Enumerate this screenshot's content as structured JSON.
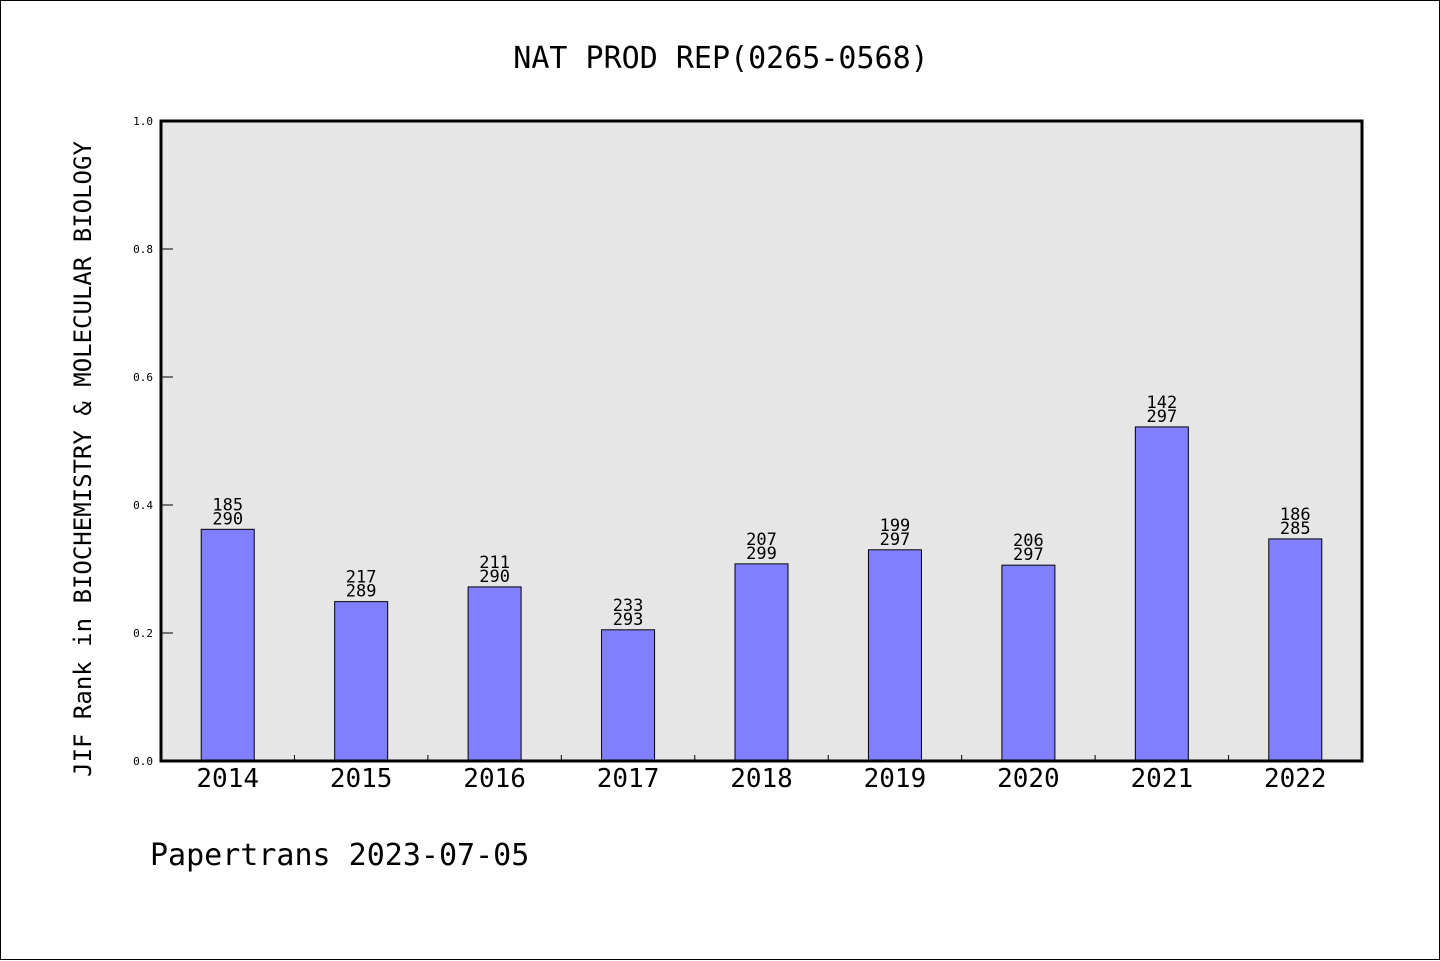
{
  "chart_data": {
    "type": "bar",
    "title": "NAT PROD REP(0265-0568)",
    "ylabel": "JIF Rank in BIOCHEMISTRY & MOLECULAR BIOLOGY",
    "xlabel": "",
    "ylim": [
      0,
      1.0
    ],
    "yticks": [
      "0.0",
      "0.2",
      "0.4",
      "0.6",
      "0.8",
      "1.0"
    ],
    "grid": false,
    "categories": [
      "2014",
      "2015",
      "2016",
      "2017",
      "2018",
      "2019",
      "2020",
      "2021",
      "2022"
    ],
    "values": [
      0.362,
      0.249,
      0.272,
      0.205,
      0.308,
      0.33,
      0.306,
      0.522,
      0.347
    ],
    "ranks": [
      "185",
      "217",
      "211",
      "233",
      "207",
      "199",
      "206",
      "142",
      "186"
    ],
    "totals": [
      "290",
      "289",
      "290",
      "293",
      "299",
      "297",
      "297",
      "297",
      "285"
    ],
    "bar_color": "#8080ff",
    "plot_background": "#e6e6e6"
  },
  "footer": "Papertrans 2023-07-05"
}
